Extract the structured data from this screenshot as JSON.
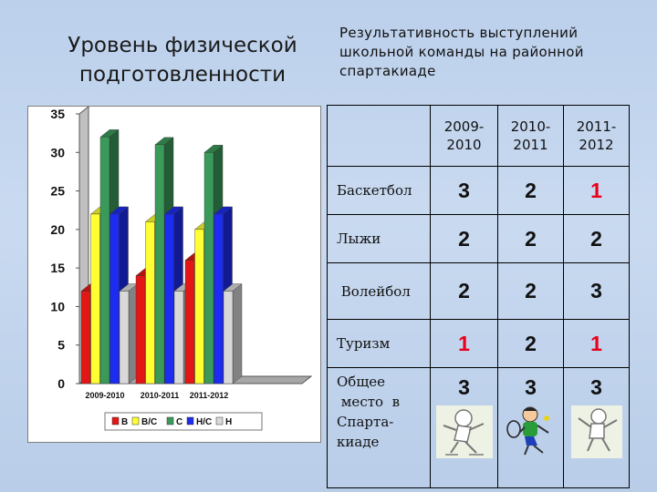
{
  "left_title": [
    "Уровень физической",
    "подготовленности"
  ],
  "right_title": [
    "Результативность  выступлений",
    "школьной команды   на районной",
    "спартакиаде"
  ],
  "chart_data": {
    "type": "bar",
    "title": "",
    "xlabel": "",
    "ylabel": "",
    "categories": [
      "2009-2010",
      "2010-2011",
      "2011-2012"
    ],
    "series": [
      {
        "name": "В",
        "color": "#e31616",
        "values": [
          12,
          14,
          16
        ]
      },
      {
        "name": "В/С",
        "color": "#ffff33",
        "values": [
          22,
          21,
          20
        ]
      },
      {
        "name": "С",
        "color": "#3a9a5a",
        "values": [
          32,
          31,
          30
        ]
      },
      {
        "name": "Н/С",
        "color": "#1c2cf0",
        "values": [
          22,
          22,
          22
        ]
      },
      {
        "name": "Н",
        "color": "#d9d9d9",
        "values": [
          12,
          12,
          12
        ]
      }
    ],
    "y_ticks": [
      "0",
      "5",
      "10",
      "15",
      "20",
      "25",
      "30",
      "35"
    ],
    "ylim": [
      0,
      35
    ],
    "grid": false,
    "legend_position": "bottom",
    "three_d": true
  },
  "table": {
    "headers": [
      {
        "line1": "2009-",
        "line2": "2010"
      },
      {
        "line1": "2010-",
        "line2": "2011"
      },
      {
        "line1": "2011-",
        "line2": "2012"
      }
    ],
    "rows": [
      {
        "sport": "Баскетбол",
        "values": [
          "3",
          "2",
          "1"
        ]
      },
      {
        "sport": "Лыжи",
        "values": [
          "2",
          "2",
          "2"
        ]
      },
      {
        "sport": " Волейбол",
        "values": [
          "2",
          "2",
          "3"
        ]
      },
      {
        "sport": "Туризм",
        "values": [
          "1",
          "2",
          "1"
        ]
      }
    ],
    "last_row": {
      "label_lines": [
        "Общее",
        " место  в",
        "Спарта-",
        "киаде"
      ],
      "values": [
        "3",
        "3",
        "3"
      ]
    },
    "red_value_color": "#e8001c"
  },
  "icons": [
    "skating-child-icon",
    "tennis-player-icon",
    "jumping-child-icon"
  ]
}
